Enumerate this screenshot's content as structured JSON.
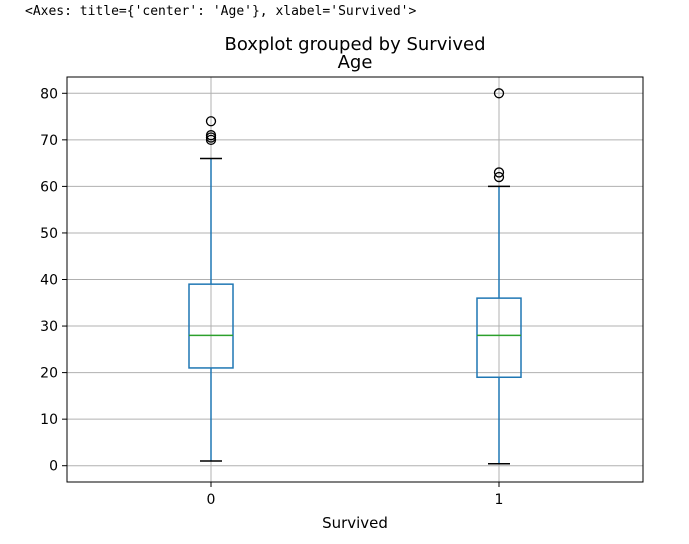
{
  "output_repr": "<Axes: title={'center': 'Age'}, xlabel='Survived'>",
  "chart_data": {
    "type": "box",
    "suptitle": "Boxplot grouped by Survived",
    "title": "Age",
    "xlabel": "Survived",
    "ylabel": "",
    "categories": [
      "0",
      "1"
    ],
    "ylim": [
      -3.5,
      83.5
    ],
    "yticks": [
      0,
      10,
      20,
      30,
      40,
      50,
      60,
      70,
      80
    ],
    "grid": true,
    "boxes": [
      {
        "category": "0",
        "whisker_low": 1,
        "q1": 21,
        "median": 28,
        "q3": 39,
        "whisker_high": 66,
        "outliers": [
          70,
          70.5,
          71,
          74
        ]
      },
      {
        "category": "1",
        "whisker_low": 0.42,
        "q1": 19,
        "median": 28,
        "q3": 36,
        "whisker_high": 60,
        "outliers": [
          62,
          63,
          80
        ]
      }
    ],
    "colors": {
      "box": "#1f77b4",
      "median": "#2ca02c",
      "grid": "#b0b0b0",
      "flier": "#000000"
    }
  }
}
